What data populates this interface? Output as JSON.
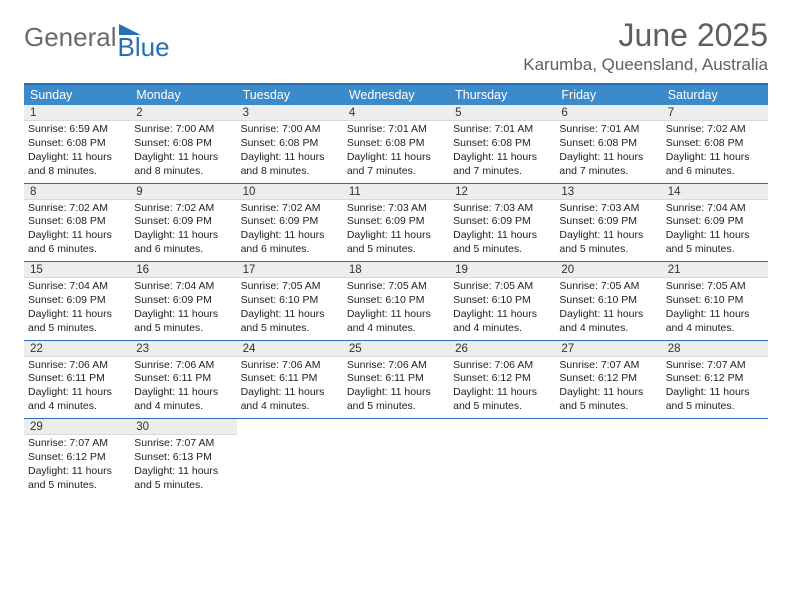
{
  "logo": {
    "word1": "General",
    "word2": "Blue"
  },
  "header": {
    "month_title": "June 2025",
    "location": "Karumba, Queensland, Australia"
  },
  "colors": {
    "accent": "#2a6fb5",
    "header_bg": "#3b8bca",
    "daynum_bg": "#eceded",
    "text_muted": "#5f5f5f"
  },
  "day_names": [
    "Sunday",
    "Monday",
    "Tuesday",
    "Wednesday",
    "Thursday",
    "Friday",
    "Saturday"
  ],
  "weeks": [
    [
      {
        "n": "1",
        "sr": "Sunrise: 6:59 AM",
        "ss": "Sunset: 6:08 PM",
        "d1": "Daylight: 11 hours",
        "d2": "and 8 minutes."
      },
      {
        "n": "2",
        "sr": "Sunrise: 7:00 AM",
        "ss": "Sunset: 6:08 PM",
        "d1": "Daylight: 11 hours",
        "d2": "and 8 minutes."
      },
      {
        "n": "3",
        "sr": "Sunrise: 7:00 AM",
        "ss": "Sunset: 6:08 PM",
        "d1": "Daylight: 11 hours",
        "d2": "and 8 minutes."
      },
      {
        "n": "4",
        "sr": "Sunrise: 7:01 AM",
        "ss": "Sunset: 6:08 PM",
        "d1": "Daylight: 11 hours",
        "d2": "and 7 minutes."
      },
      {
        "n": "5",
        "sr": "Sunrise: 7:01 AM",
        "ss": "Sunset: 6:08 PM",
        "d1": "Daylight: 11 hours",
        "d2": "and 7 minutes."
      },
      {
        "n": "6",
        "sr": "Sunrise: 7:01 AM",
        "ss": "Sunset: 6:08 PM",
        "d1": "Daylight: 11 hours",
        "d2": "and 7 minutes."
      },
      {
        "n": "7",
        "sr": "Sunrise: 7:02 AM",
        "ss": "Sunset: 6:08 PM",
        "d1": "Daylight: 11 hours",
        "d2": "and 6 minutes."
      }
    ],
    [
      {
        "n": "8",
        "sr": "Sunrise: 7:02 AM",
        "ss": "Sunset: 6:08 PM",
        "d1": "Daylight: 11 hours",
        "d2": "and 6 minutes."
      },
      {
        "n": "9",
        "sr": "Sunrise: 7:02 AM",
        "ss": "Sunset: 6:09 PM",
        "d1": "Daylight: 11 hours",
        "d2": "and 6 minutes."
      },
      {
        "n": "10",
        "sr": "Sunrise: 7:02 AM",
        "ss": "Sunset: 6:09 PM",
        "d1": "Daylight: 11 hours",
        "d2": "and 6 minutes."
      },
      {
        "n": "11",
        "sr": "Sunrise: 7:03 AM",
        "ss": "Sunset: 6:09 PM",
        "d1": "Daylight: 11 hours",
        "d2": "and 5 minutes."
      },
      {
        "n": "12",
        "sr": "Sunrise: 7:03 AM",
        "ss": "Sunset: 6:09 PM",
        "d1": "Daylight: 11 hours",
        "d2": "and 5 minutes."
      },
      {
        "n": "13",
        "sr": "Sunrise: 7:03 AM",
        "ss": "Sunset: 6:09 PM",
        "d1": "Daylight: 11 hours",
        "d2": "and 5 minutes."
      },
      {
        "n": "14",
        "sr": "Sunrise: 7:04 AM",
        "ss": "Sunset: 6:09 PM",
        "d1": "Daylight: 11 hours",
        "d2": "and 5 minutes."
      }
    ],
    [
      {
        "n": "15",
        "sr": "Sunrise: 7:04 AM",
        "ss": "Sunset: 6:09 PM",
        "d1": "Daylight: 11 hours",
        "d2": "and 5 minutes."
      },
      {
        "n": "16",
        "sr": "Sunrise: 7:04 AM",
        "ss": "Sunset: 6:09 PM",
        "d1": "Daylight: 11 hours",
        "d2": "and 5 minutes."
      },
      {
        "n": "17",
        "sr": "Sunrise: 7:05 AM",
        "ss": "Sunset: 6:10 PM",
        "d1": "Daylight: 11 hours",
        "d2": "and 5 minutes."
      },
      {
        "n": "18",
        "sr": "Sunrise: 7:05 AM",
        "ss": "Sunset: 6:10 PM",
        "d1": "Daylight: 11 hours",
        "d2": "and 4 minutes."
      },
      {
        "n": "19",
        "sr": "Sunrise: 7:05 AM",
        "ss": "Sunset: 6:10 PM",
        "d1": "Daylight: 11 hours",
        "d2": "and 4 minutes."
      },
      {
        "n": "20",
        "sr": "Sunrise: 7:05 AM",
        "ss": "Sunset: 6:10 PM",
        "d1": "Daylight: 11 hours",
        "d2": "and 4 minutes."
      },
      {
        "n": "21",
        "sr": "Sunrise: 7:05 AM",
        "ss": "Sunset: 6:10 PM",
        "d1": "Daylight: 11 hours",
        "d2": "and 4 minutes."
      }
    ],
    [
      {
        "n": "22",
        "sr": "Sunrise: 7:06 AM",
        "ss": "Sunset: 6:11 PM",
        "d1": "Daylight: 11 hours",
        "d2": "and 4 minutes."
      },
      {
        "n": "23",
        "sr": "Sunrise: 7:06 AM",
        "ss": "Sunset: 6:11 PM",
        "d1": "Daylight: 11 hours",
        "d2": "and 4 minutes."
      },
      {
        "n": "24",
        "sr": "Sunrise: 7:06 AM",
        "ss": "Sunset: 6:11 PM",
        "d1": "Daylight: 11 hours",
        "d2": "and 4 minutes."
      },
      {
        "n": "25",
        "sr": "Sunrise: 7:06 AM",
        "ss": "Sunset: 6:11 PM",
        "d1": "Daylight: 11 hours",
        "d2": "and 5 minutes."
      },
      {
        "n": "26",
        "sr": "Sunrise: 7:06 AM",
        "ss": "Sunset: 6:12 PM",
        "d1": "Daylight: 11 hours",
        "d2": "and 5 minutes."
      },
      {
        "n": "27",
        "sr": "Sunrise: 7:07 AM",
        "ss": "Sunset: 6:12 PM",
        "d1": "Daylight: 11 hours",
        "d2": "and 5 minutes."
      },
      {
        "n": "28",
        "sr": "Sunrise: 7:07 AM",
        "ss": "Sunset: 6:12 PM",
        "d1": "Daylight: 11 hours",
        "d2": "and 5 minutes."
      }
    ],
    [
      {
        "n": "29",
        "sr": "Sunrise: 7:07 AM",
        "ss": "Sunset: 6:12 PM",
        "d1": "Daylight: 11 hours",
        "d2": "and 5 minutes."
      },
      {
        "n": "30",
        "sr": "Sunrise: 7:07 AM",
        "ss": "Sunset: 6:13 PM",
        "d1": "Daylight: 11 hours",
        "d2": "and 5 minutes."
      },
      null,
      null,
      null,
      null,
      null
    ]
  ]
}
